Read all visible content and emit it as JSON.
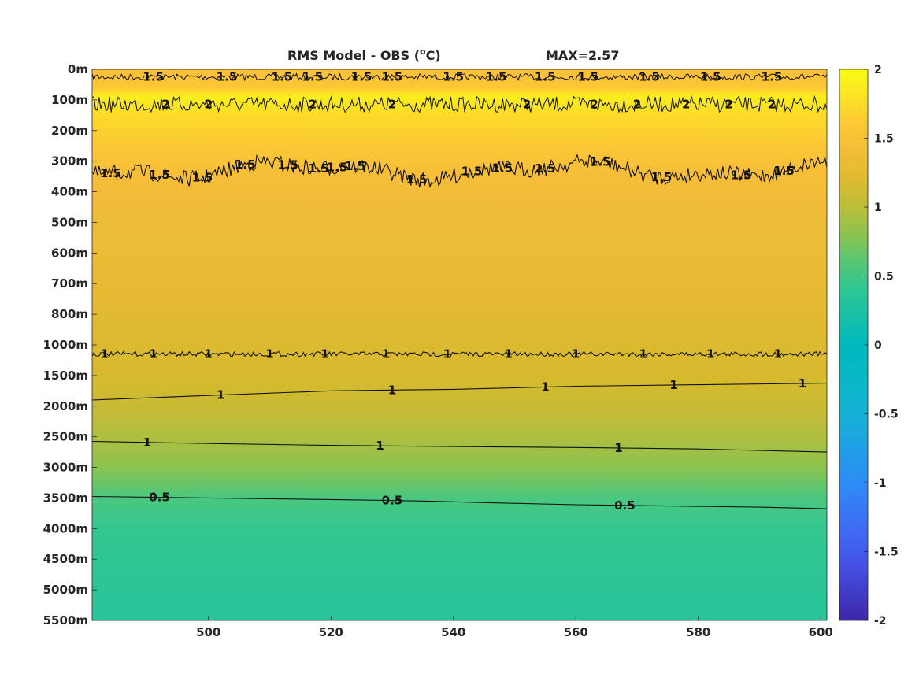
{
  "chart_data": {
    "type": "heatmap",
    "title": "RMS Model - OBS (",
    "title_unit": "C)",
    "title_superscript": "o",
    "max_label": "MAX=2.57",
    "xlim": [
      481,
      601
    ],
    "x_ticks": [
      500,
      520,
      540,
      560,
      580,
      600
    ],
    "y_tick_labels": [
      "0m",
      "100m",
      "200m",
      "300m",
      "400m",
      "500m",
      "600m",
      "700m",
      "800m",
      "1000m",
      "1500m",
      "2000m",
      "2500m",
      "3000m",
      "3500m",
      "4000m",
      "4500m",
      "5000m",
      "5500m"
    ],
    "colorbar": {
      "colormap": "parula",
      "clim": [
        -2,
        2
      ],
      "tick_values": [
        2,
        1.5,
        1,
        0.5,
        0,
        -0.5,
        -1,
        -1.5,
        -2
      ],
      "tick_labels": [
        "2",
        "1.5",
        "1",
        "0.5",
        "0",
        "-0.5",
        "-1",
        "-1.5",
        "-2"
      ]
    },
    "depth_profile": [
      {
        "level": 0,
        "value": 1.5
      },
      {
        "level": 0.6,
        "value": 1.6
      },
      {
        "level": 0.9,
        "value": 1.9
      },
      {
        "level": 1.5,
        "value": 1.75
      },
      {
        "level": 2.5,
        "value": 1.6
      },
      {
        "level": 3.5,
        "value": 1.45
      },
      {
        "level": 5,
        "value": 1.35
      },
      {
        "level": 7,
        "value": 1.3
      },
      {
        "level": 8.5,
        "value": 1.2
      },
      {
        "level": 10,
        "value": 1.12
      },
      {
        "level": 11,
        "value": 1.06
      },
      {
        "level": 12,
        "value": 0.95
      },
      {
        "level": 13,
        "value": 0.8
      },
      {
        "level": 14,
        "value": 0.55
      },
      {
        "level": 15,
        "value": 0.45
      },
      {
        "level": 16,
        "value": 0.4
      },
      {
        "level": 18,
        "value": 0.35
      }
    ],
    "contours": [
      {
        "level_label": "1.5",
        "depth_level": 0.25,
        "noise": true,
        "labels_x": [
          491,
          503,
          512,
          517,
          525,
          530,
          540,
          547,
          555,
          562,
          572,
          582,
          592
        ]
      },
      {
        "level_label": "2",
        "depth_level": 1.15,
        "noise": true,
        "labels_x": [
          493,
          500,
          517,
          530,
          552,
          563,
          570,
          578,
          585,
          592
        ]
      },
      {
        "level_label": "1.5",
        "depth_level": 3.3,
        "noise": true,
        "labels_x": [
          484,
          492,
          499,
          506,
          513,
          518,
          521,
          524,
          534,
          543,
          548,
          555,
          564,
          574,
          587,
          594
        ]
      },
      {
        "level_label": "1",
        "depth_level": 9.3,
        "noise": true,
        "labels_x": [
          483,
          491,
          500,
          510,
          519,
          529,
          539,
          549,
          560,
          571,
          582,
          593
        ]
      },
      {
        "level_label": "1",
        "points": [
          [
            481,
            10.8
          ],
          [
            500,
            10.65
          ],
          [
            520,
            10.5
          ],
          [
            540,
            10.45
          ],
          [
            560,
            10.35
          ],
          [
            580,
            10.3
          ],
          [
            601,
            10.25
          ]
        ],
        "labels_x": [
          502,
          530,
          555,
          576,
          597
        ]
      },
      {
        "level_label": "1",
        "points": [
          [
            481,
            12.15
          ],
          [
            500,
            12.22
          ],
          [
            520,
            12.28
          ],
          [
            540,
            12.32
          ],
          [
            560,
            12.35
          ],
          [
            580,
            12.4
          ],
          [
            601,
            12.5
          ]
        ],
        "labels_x": [
          490,
          528,
          567
        ]
      },
      {
        "level_label": "0.5",
        "points": [
          [
            481,
            13.95
          ],
          [
            500,
            14.0
          ],
          [
            520,
            14.05
          ],
          [
            535,
            14.1
          ],
          [
            545,
            14.15
          ],
          [
            560,
            14.22
          ],
          [
            575,
            14.26
          ],
          [
            590,
            14.3
          ],
          [
            601,
            14.35
          ]
        ],
        "labels_x": [
          492,
          530,
          568
        ]
      }
    ]
  }
}
